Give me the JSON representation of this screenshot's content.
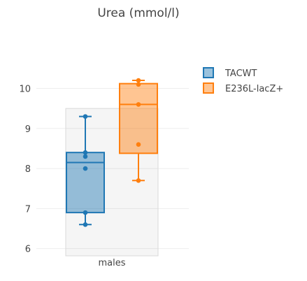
{
  "chart_data": {
    "type": "box",
    "title": "Urea (mmol/l)",
    "categories": [
      "males"
    ],
    "ylim": [
      5.75,
      10.55
    ],
    "yticks": [
      6,
      7,
      8,
      9,
      10
    ],
    "grid": true,
    "legend_position": "top-right",
    "series": [
      {
        "name": "TACWT",
        "color": "#1f77b4",
        "box": {
          "min": 6.6,
          "q1": 6.9,
          "median": 8.15,
          "q3": 8.4,
          "max": 9.3
        },
        "points": [
          6.6,
          6.9,
          8.0,
          8.3,
          8.4,
          9.3
        ]
      },
      {
        "name": "E236L-lacZ+",
        "color": "#ff7f0e",
        "box": {
          "min": 7.7,
          "q1": 8.38,
          "median": 9.6,
          "q3": 10.12,
          "max": 10.2
        },
        "points": [
          7.7,
          8.6,
          9.6,
          10.1,
          10.2
        ]
      }
    ],
    "background_band": {
      "category": "males",
      "ymin": 5.82,
      "ymax": 9.5
    }
  }
}
